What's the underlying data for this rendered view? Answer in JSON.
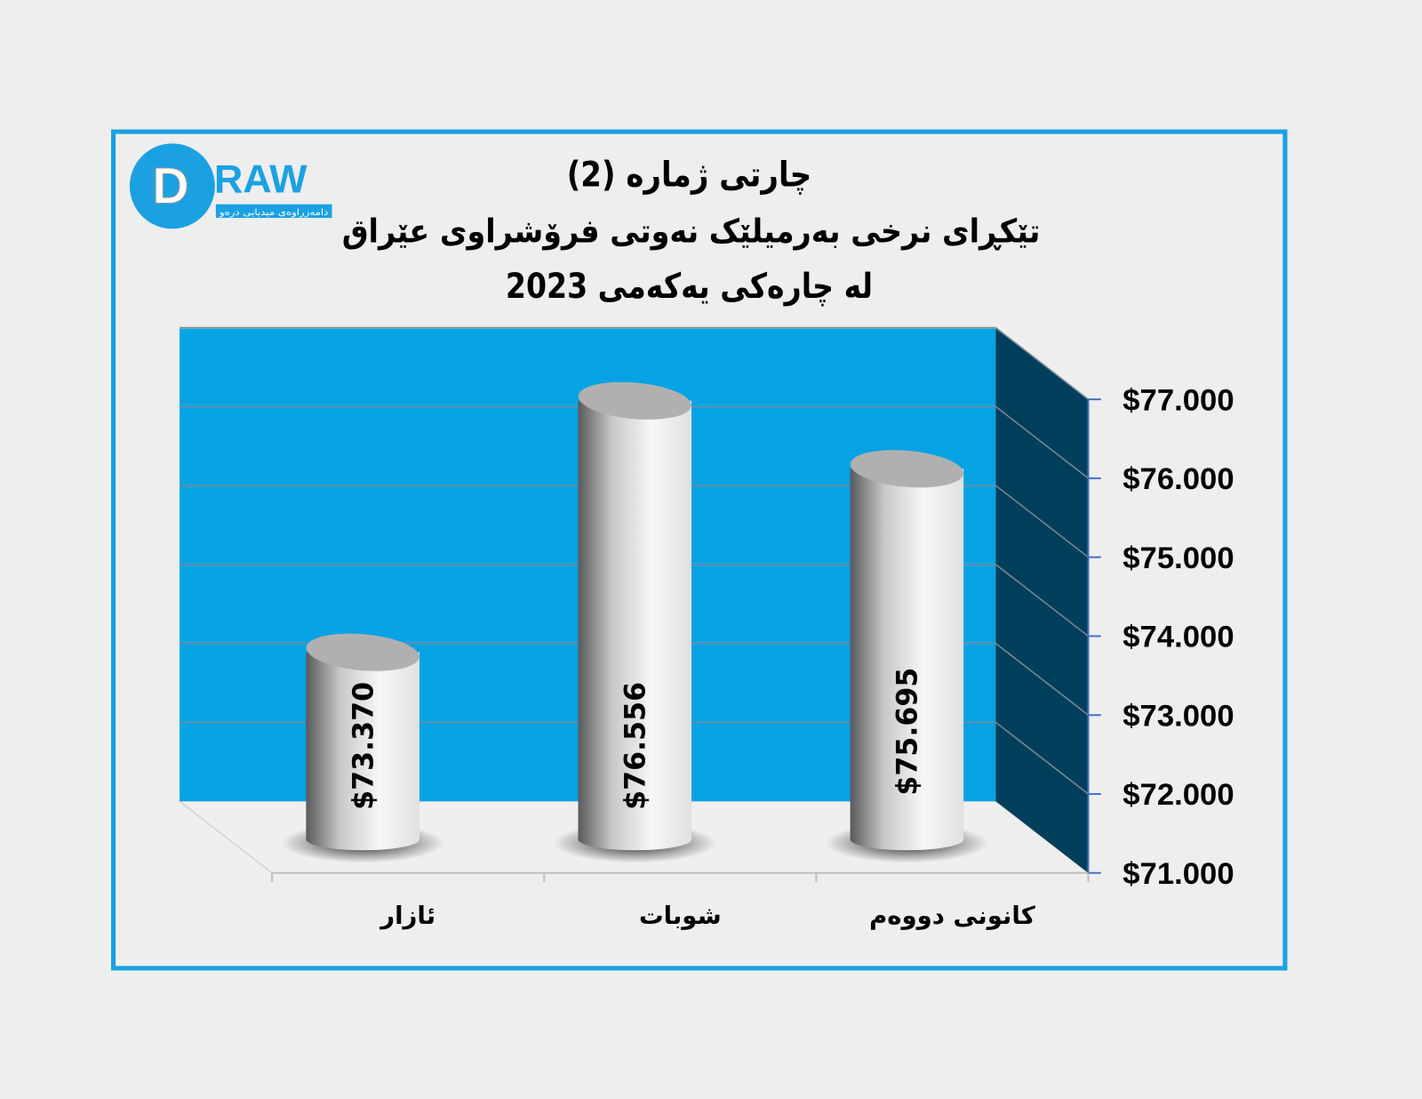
{
  "logo": {
    "text": "DRAW",
    "subtitle": "دامەزراوەی میدیایی درەو"
  },
  "chart_data": {
    "type": "bar",
    "title_lines": [
      "چارتی ژمارە (2)",
      "تێکڕای نرخی بەرمیلێک نەوتی فرۆشراوی عێراق",
      "لە چارەکی یەکەمی 2023"
    ],
    "categories": [
      "ئازار",
      "شوبات",
      "کانونی دووەم"
    ],
    "values": [
      73370,
      76556,
      75695
    ],
    "data_labels": [
      "$73.370",
      "$76.556",
      "$75.695"
    ],
    "ylim": [
      71000,
      77000
    ],
    "yticks": [
      71000,
      72000,
      73000,
      74000,
      75000,
      76000,
      77000
    ],
    "ytick_labels": [
      "$71.000",
      "$72.000",
      "$73.000",
      "$74.000",
      "$75.000",
      "$76.000",
      "$77.000"
    ],
    "y_axis_side": "right",
    "grid": true,
    "style": "3d-cylinder",
    "colors": {
      "back_wall": "#05a3e4",
      "side_wall": "#003f5c",
      "frame": "#1ba1e2",
      "bar": "#f2f2f2",
      "axis": "#4472c4"
    }
  }
}
